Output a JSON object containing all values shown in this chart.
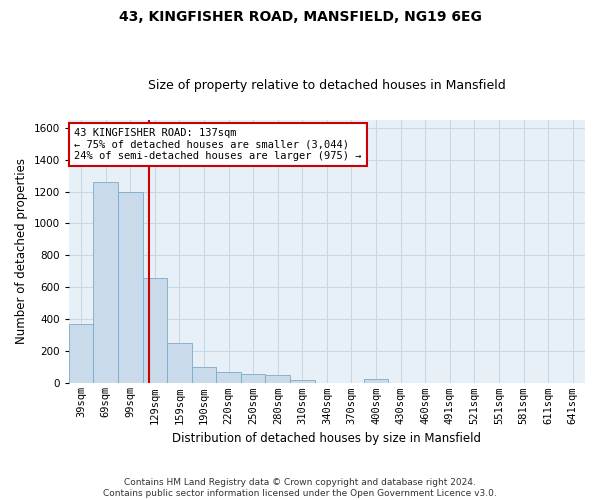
{
  "title": "43, KINGFISHER ROAD, MANSFIELD, NG19 6EG",
  "subtitle": "Size of property relative to detached houses in Mansfield",
  "xlabel": "Distribution of detached houses by size in Mansfield",
  "ylabel": "Number of detached properties",
  "footer_line1": "Contains HM Land Registry data © Crown copyright and database right 2024.",
  "footer_line2": "Contains public sector information licensed under the Open Government Licence v3.0.",
  "categories": [
    "39sqm",
    "69sqm",
    "99sqm",
    "129sqm",
    "159sqm",
    "190sqm",
    "220sqm",
    "250sqm",
    "280sqm",
    "310sqm",
    "340sqm",
    "370sqm",
    "400sqm",
    "430sqm",
    "460sqm",
    "491sqm",
    "521sqm",
    "551sqm",
    "581sqm",
    "611sqm",
    "641sqm"
  ],
  "values": [
    370,
    1260,
    1200,
    660,
    255,
    105,
    70,
    60,
    50,
    20,
    0,
    0,
    25,
    0,
    0,
    0,
    0,
    0,
    0,
    0,
    0
  ],
  "bar_color": "#c9daea",
  "bar_edge_color": "#7aaac8",
  "grid_color": "#c5d8e8",
  "background_color": "#e8f0f7",
  "vline_color": "#cc0000",
  "annotation_line1": "43 KINGFISHER ROAD: 137sqm",
  "annotation_line2": "← 75% of detached houses are smaller (3,044)",
  "annotation_line3": "24% of semi-detached houses are larger (975) →",
  "annotation_box_color": "#ffffff",
  "annotation_box_edge": "#cc0000",
  "ylim": [
    0,
    1650
  ],
  "yticks": [
    0,
    200,
    400,
    600,
    800,
    1000,
    1200,
    1400,
    1600
  ],
  "title_fontsize": 10,
  "subtitle_fontsize": 9,
  "ylabel_fontsize": 8.5,
  "xlabel_fontsize": 8.5,
  "tick_fontsize": 7.5,
  "annot_fontsize": 7.5,
  "footer_fontsize": 6.5
}
